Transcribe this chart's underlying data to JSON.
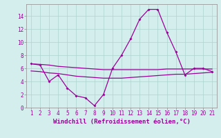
{
  "xlabel": "Windchill (Refroidissement éolien,°C)",
  "x": [
    1,
    2,
    3,
    4,
    5,
    6,
    7,
    8,
    9,
    10,
    11,
    12,
    13,
    14,
    15,
    16,
    17,
    18,
    19,
    20,
    21
  ],
  "line1": [
    6.7,
    6.5,
    4.0,
    5.0,
    3.0,
    1.8,
    1.5,
    0.3,
    2.0,
    6.0,
    8.0,
    10.5,
    13.5,
    15.0,
    15.0,
    11.5,
    8.5,
    5.0,
    6.0,
    6.0,
    5.5
  ],
  "line2": [
    6.7,
    6.6,
    6.5,
    6.3,
    6.2,
    6.1,
    6.0,
    5.9,
    5.8,
    5.8,
    5.8,
    5.8,
    5.8,
    5.8,
    5.8,
    5.9,
    5.9,
    5.9,
    5.9,
    5.9,
    5.9
  ],
  "line3": [
    5.6,
    5.5,
    5.3,
    5.2,
    5.0,
    4.8,
    4.7,
    4.6,
    4.5,
    4.5,
    4.5,
    4.6,
    4.7,
    4.8,
    4.9,
    5.0,
    5.1,
    5.1,
    5.2,
    5.3,
    5.4
  ],
  "line_color": "#990099",
  "bg_color": "#d4eeed",
  "grid_color": "#aed4d0",
  "ylim": [
    0,
    15
  ],
  "xlim": [
    1,
    21
  ],
  "yticks": [
    0,
    2,
    4,
    6,
    8,
    10,
    12,
    14
  ],
  "xticks": [
    1,
    2,
    3,
    4,
    5,
    6,
    7,
    8,
    9,
    10,
    11,
    12,
    13,
    14,
    15,
    16,
    17,
    18,
    19,
    20,
    21
  ],
  "tick_fontsize": 5.5,
  "xlabel_fontsize": 6.5,
  "markersize": 2.0,
  "linewidth": 0.9
}
